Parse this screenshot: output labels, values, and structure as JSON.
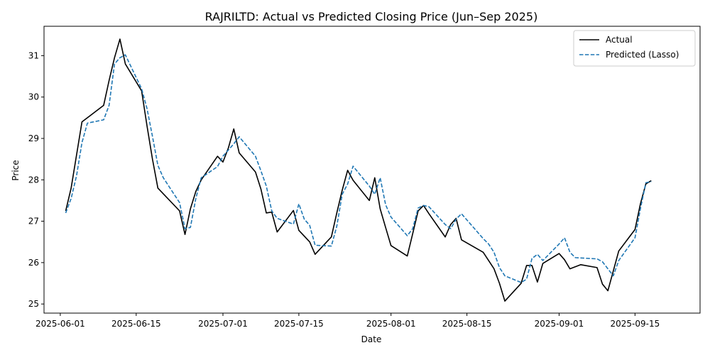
{
  "chart_data": {
    "type": "line",
    "title": "RAJRILTD: Actual vs Predicted Closing Price (Jun–Sep 2025)",
    "xlabel": "Date",
    "ylabel": "Price",
    "x_ticks": [
      "2025-06-01",
      "2025-06-15",
      "2025-07-01",
      "2025-07-15",
      "2025-08-01",
      "2025-08-15",
      "2025-09-01",
      "2025-09-15"
    ],
    "y_ticks": [
      25,
      26,
      27,
      28,
      29,
      30,
      31
    ],
    "xlim": [
      "2025-05-29",
      "2025-09-27"
    ],
    "ylim": [
      24.78,
      31.71
    ],
    "legend_position": "top-right",
    "grid": false,
    "series": [
      {
        "name": "Actual",
        "color": "#000000",
        "style": "solid",
        "points": [
          [
            "2025-06-02",
            27.25
          ],
          [
            "2025-06-03",
            27.8
          ],
          [
            "2025-06-04",
            28.6
          ],
          [
            "2025-06-05",
            29.4
          ],
          [
            "2025-06-09",
            29.8
          ],
          [
            "2025-06-10",
            30.4
          ],
          [
            "2025-06-11",
            30.95
          ],
          [
            "2025-06-12",
            31.4
          ],
          [
            "2025-06-13",
            30.8
          ],
          [
            "2025-06-16",
            30.15
          ],
          [
            "2025-06-17",
            29.3
          ],
          [
            "2025-06-18",
            28.5
          ],
          [
            "2025-06-19",
            27.8
          ],
          [
            "2025-06-23",
            27.25
          ],
          [
            "2025-06-24",
            26.68
          ],
          [
            "2025-06-25",
            27.3
          ],
          [
            "2025-06-26",
            27.72
          ],
          [
            "2025-06-27",
            28.0
          ],
          [
            "2025-06-30",
            28.57
          ],
          [
            "2025-07-01",
            28.43
          ],
          [
            "2025-07-02",
            28.77
          ],
          [
            "2025-07-03",
            29.23
          ],
          [
            "2025-07-04",
            28.65
          ],
          [
            "2025-07-07",
            28.19
          ],
          [
            "2025-07-08",
            27.78
          ],
          [
            "2025-07-09",
            27.2
          ],
          [
            "2025-07-10",
            27.22
          ],
          [
            "2025-07-11",
            26.74
          ],
          [
            "2025-07-14",
            27.26
          ],
          [
            "2025-07-15",
            26.78
          ],
          [
            "2025-07-17",
            26.5
          ],
          [
            "2025-07-18",
            26.2
          ],
          [
            "2025-07-21",
            26.62
          ],
          [
            "2025-07-22",
            27.2
          ],
          [
            "2025-07-23",
            27.75
          ],
          [
            "2025-07-24",
            28.23
          ],
          [
            "2025-07-25",
            27.99
          ],
          [
            "2025-07-28",
            27.5
          ],
          [
            "2025-07-29",
            28.05
          ],
          [
            "2025-07-30",
            27.3
          ],
          [
            "2025-07-31",
            26.85
          ],
          [
            "2025-08-01",
            26.41
          ],
          [
            "2025-08-04",
            26.16
          ],
          [
            "2025-08-05",
            26.7
          ],
          [
            "2025-08-06",
            27.25
          ],
          [
            "2025-08-07",
            27.38
          ],
          [
            "2025-08-08",
            27.18
          ],
          [
            "2025-08-11",
            26.62
          ],
          [
            "2025-08-12",
            26.92
          ],
          [
            "2025-08-13",
            27.07
          ],
          [
            "2025-08-14",
            26.55
          ],
          [
            "2025-08-18",
            26.25
          ],
          [
            "2025-08-19",
            26.05
          ],
          [
            "2025-08-20",
            25.85
          ],
          [
            "2025-08-21",
            25.5
          ],
          [
            "2025-08-22",
            25.07
          ],
          [
            "2025-08-25",
            25.5
          ],
          [
            "2025-08-26",
            25.93
          ],
          [
            "2025-08-27",
            25.93
          ],
          [
            "2025-08-28",
            25.53
          ],
          [
            "2025-08-29",
            25.98
          ],
          [
            "2025-09-01",
            26.22
          ],
          [
            "2025-09-02",
            26.07
          ],
          [
            "2025-09-03",
            25.85
          ],
          [
            "2025-09-05",
            25.95
          ],
          [
            "2025-09-08",
            25.88
          ],
          [
            "2025-09-09",
            25.48
          ],
          [
            "2025-09-10",
            25.32
          ],
          [
            "2025-09-11",
            25.8
          ],
          [
            "2025-09-12",
            26.28
          ],
          [
            "2025-09-15",
            26.8
          ],
          [
            "2025-09-16",
            27.42
          ],
          [
            "2025-09-17",
            27.9
          ],
          [
            "2025-09-18",
            27.98
          ]
        ]
      },
      {
        "name": "Predicted (Lasso)",
        "color": "#1f77b4",
        "style": "dashed",
        "points": [
          [
            "2025-06-02",
            27.2
          ],
          [
            "2025-06-03",
            27.55
          ],
          [
            "2025-06-04",
            28.1
          ],
          [
            "2025-06-05",
            28.9
          ],
          [
            "2025-06-06",
            29.37
          ],
          [
            "2025-06-09",
            29.45
          ],
          [
            "2025-06-10",
            29.8
          ],
          [
            "2025-06-11",
            30.8
          ],
          [
            "2025-06-12",
            30.95
          ],
          [
            "2025-06-13",
            31.02
          ],
          [
            "2025-06-16",
            30.2
          ],
          [
            "2025-06-17",
            29.72
          ],
          [
            "2025-06-18",
            29.05
          ],
          [
            "2025-06-19",
            28.35
          ],
          [
            "2025-06-20",
            28.05
          ],
          [
            "2025-06-23",
            27.45
          ],
          [
            "2025-06-24",
            26.82
          ],
          [
            "2025-06-25",
            26.85
          ],
          [
            "2025-06-26",
            27.55
          ],
          [
            "2025-06-27",
            28.05
          ],
          [
            "2025-06-30",
            28.32
          ],
          [
            "2025-07-01",
            28.57
          ],
          [
            "2025-07-02",
            28.72
          ],
          [
            "2025-07-03",
            28.87
          ],
          [
            "2025-07-04",
            29.04
          ],
          [
            "2025-07-07",
            28.57
          ],
          [
            "2025-07-08",
            28.22
          ],
          [
            "2025-07-09",
            27.85
          ],
          [
            "2025-07-10",
            27.25
          ],
          [
            "2025-07-11",
            27.07
          ],
          [
            "2025-07-14",
            26.93
          ],
          [
            "2025-07-15",
            27.42
          ],
          [
            "2025-07-16",
            27.05
          ],
          [
            "2025-07-17",
            26.9
          ],
          [
            "2025-07-18",
            26.42
          ],
          [
            "2025-07-21",
            26.4
          ],
          [
            "2025-07-22",
            26.88
          ],
          [
            "2025-07-23",
            27.65
          ],
          [
            "2025-07-24",
            27.9
          ],
          [
            "2025-07-25",
            28.33
          ],
          [
            "2025-07-28",
            27.85
          ],
          [
            "2025-07-29",
            27.65
          ],
          [
            "2025-07-30",
            28.05
          ],
          [
            "2025-07-31",
            27.4
          ],
          [
            "2025-08-01",
            27.1
          ],
          [
            "2025-08-04",
            26.65
          ],
          [
            "2025-08-05",
            26.82
          ],
          [
            "2025-08-06",
            27.32
          ],
          [
            "2025-08-07",
            27.38
          ],
          [
            "2025-08-08",
            27.35
          ],
          [
            "2025-08-11",
            26.92
          ],
          [
            "2025-08-12",
            26.82
          ],
          [
            "2025-08-13",
            27.05
          ],
          [
            "2025-08-14",
            27.18
          ],
          [
            "2025-08-18",
            26.58
          ],
          [
            "2025-08-19",
            26.45
          ],
          [
            "2025-08-20",
            26.25
          ],
          [
            "2025-08-21",
            25.88
          ],
          [
            "2025-08-22",
            25.68
          ],
          [
            "2025-08-25",
            25.52
          ],
          [
            "2025-08-26",
            25.6
          ],
          [
            "2025-08-27",
            26.1
          ],
          [
            "2025-08-28",
            26.2
          ],
          [
            "2025-08-29",
            26.05
          ],
          [
            "2025-09-01",
            26.45
          ],
          [
            "2025-09-02",
            26.6
          ],
          [
            "2025-09-03",
            26.25
          ],
          [
            "2025-09-04",
            26.12
          ],
          [
            "2025-09-08",
            26.09
          ],
          [
            "2025-09-09",
            26.02
          ],
          [
            "2025-09-10",
            25.85
          ],
          [
            "2025-09-11",
            25.68
          ],
          [
            "2025-09-12",
            26.05
          ],
          [
            "2025-09-15",
            26.6
          ],
          [
            "2025-09-16",
            27.3
          ],
          [
            "2025-09-17",
            27.93
          ],
          [
            "2025-09-18",
            27.96
          ]
        ]
      }
    ]
  }
}
